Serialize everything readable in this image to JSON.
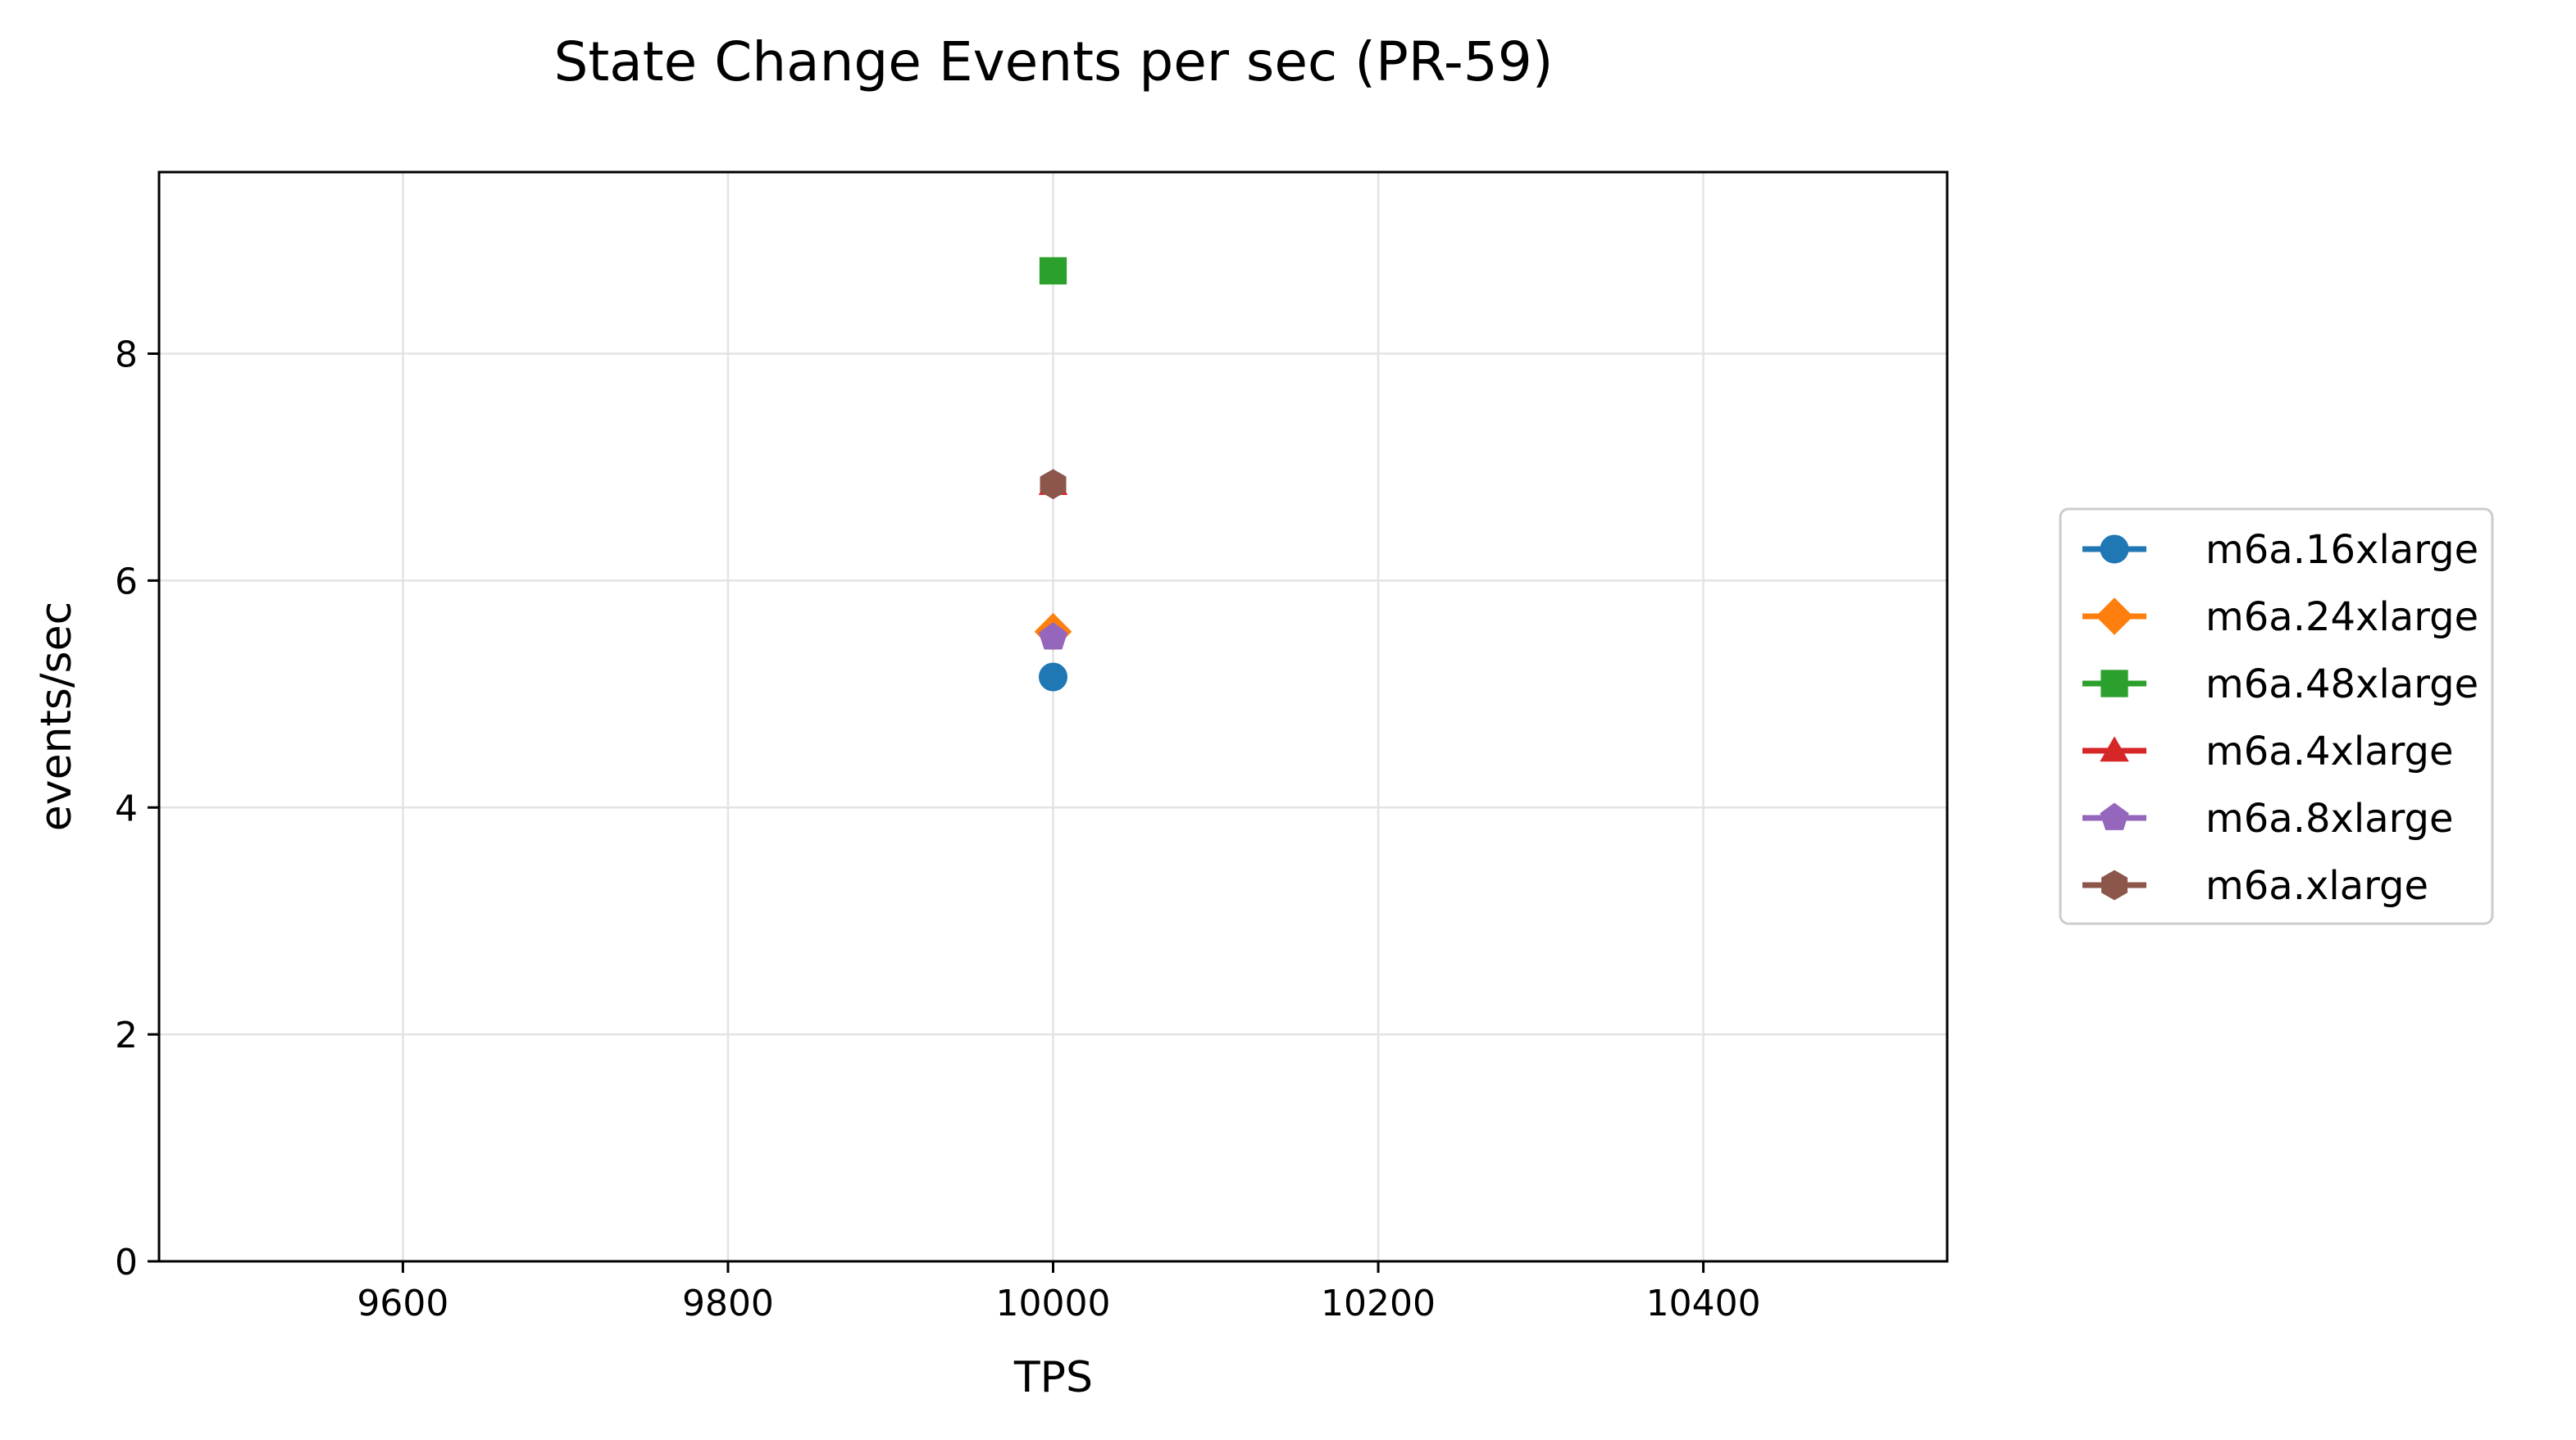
{
  "chart_data": {
    "type": "line",
    "title": "State Change Events per sec (PR-59)",
    "xlabel": "TPS",
    "ylabel": "events/sec",
    "xlim": [
      9450,
      10550
    ],
    "ylim": [
      0,
      9.6
    ],
    "x_ticks": [
      9600,
      9800,
      10000,
      10200,
      10400
    ],
    "y_ticks": [
      0,
      2,
      4,
      6,
      8
    ],
    "grid": true,
    "legend_position": "right-outside",
    "series": [
      {
        "name": "m6a.16xlarge",
        "color": "#1f77b4",
        "marker": "circle",
        "x": [
          10000
        ],
        "y": [
          5.15
        ]
      },
      {
        "name": "m6a.24xlarge",
        "color": "#ff7f0e",
        "marker": "diamond",
        "x": [
          10000
        ],
        "y": [
          5.55
        ]
      },
      {
        "name": "m6a.48xlarge",
        "color": "#2ca02c",
        "marker": "square",
        "x": [
          10000
        ],
        "y": [
          8.73
        ]
      },
      {
        "name": "m6a.4xlarge",
        "color": "#d62728",
        "marker": "triangle",
        "x": [
          10000
        ],
        "y": [
          6.85
        ]
      },
      {
        "name": "m6a.8xlarge",
        "color": "#9467bd",
        "marker": "pentagon",
        "x": [
          10000
        ],
        "y": [
          5.5
        ]
      },
      {
        "name": "m6a.xlarge",
        "color": "#8c564b",
        "marker": "hexagon",
        "x": [
          10000
        ],
        "y": [
          6.85
        ]
      }
    ]
  }
}
